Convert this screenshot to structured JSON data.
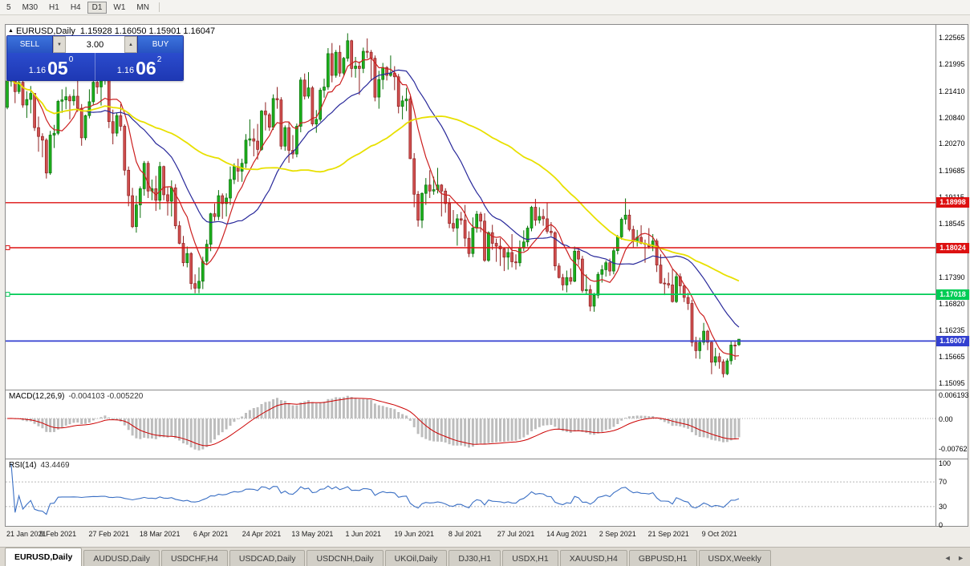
{
  "toolbar": {
    "timeframes": [
      {
        "label": "5",
        "active": false
      },
      {
        "label": "M30",
        "active": false
      },
      {
        "label": "H1",
        "active": false
      },
      {
        "label": "H4",
        "active": false
      },
      {
        "label": "D1",
        "active": true
      },
      {
        "label": "W1",
        "active": false
      },
      {
        "label": "MN",
        "active": false
      }
    ]
  },
  "chart": {
    "title_symbol": "EURUSD,Daily",
    "title_ohlc": "1.15928 1.16050 1.15901 1.16047",
    "marker": "▲"
  },
  "trade": {
    "sell_label": "SELL",
    "buy_label": "BUY",
    "volume": "3.00",
    "bid": "1.16050",
    "ask": "1.16062",
    "sell_price_main": "1.16",
    "sell_price_pips": "05",
    "sell_price_point": "0",
    "buy_price_main": "1.16",
    "buy_price_pips": "06",
    "buy_price_point": "2"
  },
  "indicators": {
    "macd": {
      "name": "MACD(12,26,9)",
      "values_text": "-0.004103 -0.005220",
      "fast": 12,
      "slow": 26,
      "signal": 9,
      "axis": [
        "0.006193",
        "0.00",
        "-0.00762"
      ]
    },
    "rsi": {
      "name": "RSI(14)",
      "value": "43.4469",
      "period": 14,
      "levels": [
        70,
        30
      ],
      "axis": [
        "100",
        "70",
        "30",
        "0"
      ]
    }
  },
  "tabs": {
    "prev_icon": "◄",
    "next_icon": "►",
    "items": [
      {
        "label": "EURUSD,Daily",
        "active": true
      },
      {
        "label": "AUDUSD,Daily",
        "active": false
      },
      {
        "label": "USDCHF,H4",
        "active": false
      },
      {
        "label": "USDCAD,Daily",
        "active": false
      },
      {
        "label": "USDCNH,Daily",
        "active": false
      },
      {
        "label": "UKOil,Daily",
        "active": false
      },
      {
        "label": "DJ30,H1",
        "active": false
      },
      {
        "label": "USDX,H1",
        "active": false
      },
      {
        "label": "XAUUSD,H4",
        "active": false
      },
      {
        "label": "GBPUSD,H1",
        "active": false
      },
      {
        "label": "USDX,Weekly",
        "active": false
      }
    ]
  },
  "chart_data": {
    "type": "candlestick",
    "symbol": "EURUSD",
    "timeframe": "Daily",
    "current": {
      "open": 1.15928,
      "high": 1.1605,
      "low": 1.15901,
      "close": 1.16047
    },
    "y_axis_labels": [
      "1.22565",
      "1.21995",
      "1.21410",
      "1.20840",
      "1.20270",
      "1.19685",
      "1.19115",
      "1.18545",
      "1.17960",
      "1.17390",
      "1.16820",
      "1.16235",
      "1.15665",
      "1.15095"
    ],
    "x_labels": [
      "21 Jan 2021",
      "9 Feb 2021",
      "27 Feb 2021",
      "18 Mar 2021",
      "6 Apr 2021",
      "24 Apr 2021",
      "13 May 2021",
      "1 Jun 2021",
      "19 Jun 2021",
      "8 Jul 2021",
      "27 Jul 2021",
      "14 Aug 2021",
      "2 Sep 2021",
      "21 Sep 2021",
      "9 Oct 2021"
    ],
    "label_step": 13,
    "colors": {
      "up": "#1cb11c",
      "up_border": "#0b6e0b",
      "down": "#d15050",
      "down_border": "#8f2020"
    },
    "moving_averages": [
      {
        "period": 8,
        "color": "#cc1f1f",
        "width": 1.2
      },
      {
        "period": 21,
        "color": "#28289a",
        "width": 1.2
      },
      {
        "period": 55,
        "color": "#e8e000",
        "width": 1.8
      }
    ],
    "hlines": [
      {
        "price": 1.18998,
        "color": "#dd1111",
        "width": 1.4,
        "tag": "1.18998",
        "marker": false
      },
      {
        "price": 1.18024,
        "color": "#dd1111",
        "width": 1.4,
        "tag": "1.18024",
        "marker": true
      },
      {
        "price": 1.17018,
        "color": "#00cc55",
        "width": 1.8,
        "tag": "1.17018",
        "marker": true
      },
      {
        "price": 1.16007,
        "color": "#3340d0",
        "width": 1.8,
        "tag": "1.16007",
        "marker": false
      }
    ],
    "candles": [
      [
        1.2106,
        1.2173,
        1.2102,
        1.2163
      ],
      [
        1.2163,
        1.2189,
        1.2151,
        1.2171
      ],
      [
        1.2171,
        1.2184,
        1.2115,
        1.214
      ],
      [
        1.214,
        1.217,
        1.2135,
        1.216
      ],
      [
        1.216,
        1.2165,
        1.2105,
        1.2111
      ],
      [
        1.2111,
        1.2141,
        1.2083,
        1.2123
      ],
      [
        1.2123,
        1.2152,
        1.2093,
        1.2136
      ],
      [
        1.2136,
        1.2137,
        1.2055,
        1.2062
      ],
      [
        1.2062,
        1.2086,
        1.201,
        1.2043
      ],
      [
        1.2043,
        1.205,
        1.1998,
        1.2035
      ],
      [
        1.2035,
        1.2039,
        1.1952,
        1.1964
      ],
      [
        1.1964,
        1.2055,
        1.196,
        1.2046
      ],
      [
        1.2046,
        1.2068,
        1.2018,
        1.205
      ],
      [
        1.205,
        1.2122,
        1.2046,
        1.2119
      ],
      [
        1.2119,
        1.2145,
        1.2094,
        1.2122
      ],
      [
        1.2122,
        1.215,
        1.2102,
        1.2129
      ],
      [
        1.2129,
        1.2134,
        1.208,
        1.212
      ],
      [
        1.212,
        1.2145,
        1.211,
        1.213
      ],
      [
        1.213,
        1.217,
        1.2096,
        1.2104
      ],
      [
        1.2104,
        1.2113,
        1.2023,
        1.204
      ],
      [
        1.204,
        1.209,
        1.2035,
        1.2088
      ],
      [
        1.2088,
        1.2145,
        1.2082,
        1.2118
      ],
      [
        1.2118,
        1.218,
        1.211,
        1.216
      ],
      [
        1.216,
        1.218,
        1.2135,
        1.215
      ],
      [
        1.215,
        1.2175,
        1.211,
        1.217
      ],
      [
        1.217,
        1.2243,
        1.2155,
        1.2175
      ],
      [
        1.2175,
        1.2183,
        1.2061,
        1.2075
      ],
      [
        1.2075,
        1.2101,
        1.2026,
        1.205
      ],
      [
        1.205,
        1.2094,
        1.2043,
        1.2088
      ],
      [
        1.2088,
        1.2113,
        1.2055,
        1.2065
      ],
      [
        1.2065,
        1.2069,
        1.1959,
        1.197
      ],
      [
        1.197,
        1.1978,
        1.1892,
        1.1915
      ],
      [
        1.1915,
        1.1932,
        1.1845,
        1.1848
      ],
      [
        1.1848,
        1.1915,
        1.1835,
        1.1895
      ],
      [
        1.1895,
        1.1935,
        1.1867,
        1.193
      ],
      [
        1.193,
        1.199,
        1.1915,
        1.1985
      ],
      [
        1.1985,
        1.199,
        1.191,
        1.1925
      ],
      [
        1.1925,
        1.195,
        1.1905,
        1.193
      ],
      [
        1.193,
        1.1958,
        1.1882,
        1.1905
      ],
      [
        1.1905,
        1.1988,
        1.1885,
        1.1978
      ],
      [
        1.1978,
        1.198,
        1.1905,
        1.1917
      ],
      [
        1.1917,
        1.1935,
        1.1872,
        1.1903
      ],
      [
        1.1903,
        1.1948,
        1.187,
        1.1932
      ],
      [
        1.1932,
        1.194,
        1.1843,
        1.185
      ],
      [
        1.185,
        1.186,
        1.181,
        1.1812
      ],
      [
        1.1812,
        1.1828,
        1.1762,
        1.177
      ],
      [
        1.177,
        1.1805,
        1.176,
        1.179
      ],
      [
        1.179,
        1.1793,
        1.1712,
        1.1725
      ],
      [
        1.1725,
        1.1745,
        1.1704,
        1.1715
      ],
      [
        1.1715,
        1.176,
        1.1704,
        1.173
      ],
      [
        1.173,
        1.1783,
        1.1713,
        1.1773
      ],
      [
        1.1773,
        1.182,
        1.1765,
        1.181
      ],
      [
        1.181,
        1.1878,
        1.1795,
        1.1876
      ],
      [
        1.1876,
        1.1898,
        1.186,
        1.187
      ],
      [
        1.187,
        1.1927,
        1.1862,
        1.1915
      ],
      [
        1.1915,
        1.192,
        1.1865,
        1.1898
      ],
      [
        1.1898,
        1.192,
        1.187,
        1.191
      ],
      [
        1.191,
        1.1978,
        1.1895,
        1.195
      ],
      [
        1.195,
        1.1985,
        1.194,
        1.1978
      ],
      [
        1.1978,
        1.1995,
        1.1945,
        1.1968
      ],
      [
        1.1968,
        1.1995,
        1.1945,
        1.1985
      ],
      [
        1.1985,
        1.2048,
        1.1975,
        1.2035
      ],
      [
        1.2035,
        1.208,
        1.2022,
        1.2038
      ],
      [
        1.2038,
        1.206,
        1.2,
        1.2033
      ],
      [
        1.2033,
        1.207,
        1.1993,
        1.2015
      ],
      [
        1.2015,
        1.21,
        1.2012,
        1.2098
      ],
      [
        1.2098,
        1.2117,
        1.2056,
        1.209
      ],
      [
        1.209,
        1.2094,
        1.2055,
        1.2063
      ],
      [
        1.2063,
        1.2134,
        1.2057,
        1.2125
      ],
      [
        1.2125,
        1.215,
        1.2103,
        1.2122
      ],
      [
        1.2122,
        1.2128,
        1.2015,
        1.2022
      ],
      [
        1.2022,
        1.2067,
        1.2012,
        1.2062
      ],
      [
        1.2062,
        1.2075,
        1.1986,
        1.2013
      ],
      [
        1.2013,
        1.2046,
        1.1995,
        1.2005
      ],
      [
        1.2005,
        1.2071,
        1.1998,
        1.2065
      ],
      [
        1.2065,
        1.2171,
        1.2052,
        1.2165
      ],
      [
        1.2165,
        1.2179,
        1.2123,
        1.213
      ],
      [
        1.213,
        1.2182,
        1.2125,
        1.2148
      ],
      [
        1.2148,
        1.2152,
        1.2065,
        1.207
      ],
      [
        1.207,
        1.21,
        1.2051,
        1.208
      ],
      [
        1.208,
        1.2148,
        1.2075,
        1.2143
      ],
      [
        1.2143,
        1.2168,
        1.2127,
        1.215
      ],
      [
        1.215,
        1.2234,
        1.2144,
        1.2222
      ],
      [
        1.2222,
        1.2245,
        1.216,
        1.2175
      ],
      [
        1.2175,
        1.223,
        1.217,
        1.2225
      ],
      [
        1.2225,
        1.224,
        1.2172,
        1.218
      ],
      [
        1.218,
        1.2215,
        1.2175,
        1.2212
      ],
      [
        1.2212,
        1.2266,
        1.2205,
        1.225
      ],
      [
        1.225,
        1.2252,
        1.2171,
        1.219
      ],
      [
        1.219,
        1.2215,
        1.217,
        1.2195
      ],
      [
        1.2195,
        1.2205,
        1.2133,
        1.219
      ],
      [
        1.219,
        1.2235,
        1.218,
        1.2227
      ],
      [
        1.2227,
        1.2255,
        1.2212,
        1.2225
      ],
      [
        1.2225,
        1.223,
        1.2163,
        1.2212
      ],
      [
        1.2212,
        1.2218,
        1.2119,
        1.2128
      ],
      [
        1.2128,
        1.2185,
        1.2103,
        1.2166
      ],
      [
        1.2166,
        1.2202,
        1.2145,
        1.2192
      ],
      [
        1.2192,
        1.2195,
        1.2164,
        1.2175
      ],
      [
        1.2175,
        1.2218,
        1.2172,
        1.218
      ],
      [
        1.218,
        1.2195,
        1.2143,
        1.2172
      ],
      [
        1.2172,
        1.2178,
        1.2093,
        1.2108
      ],
      [
        1.2108,
        1.2131,
        1.208,
        1.212
      ],
      [
        1.212,
        1.2148,
        1.2098,
        1.2124
      ],
      [
        1.2124,
        1.213,
        1.1994,
        1.1995
      ],
      [
        1.1995,
        1.2007,
        1.189,
        1.1918
      ],
      [
        1.1918,
        1.1925,
        1.1848,
        1.1862
      ],
      [
        1.1862,
        1.1922,
        1.1845,
        1.192
      ],
      [
        1.192,
        1.1953,
        1.1895,
        1.1938
      ],
      [
        1.1938,
        1.197,
        1.191,
        1.1925
      ],
      [
        1.1925,
        1.1956,
        1.1917,
        1.1928
      ],
      [
        1.1928,
        1.1975,
        1.192,
        1.1938
      ],
      [
        1.1938,
        1.194,
        1.187,
        1.1925
      ],
      [
        1.1925,
        1.1931,
        1.1878,
        1.1898
      ],
      [
        1.1898,
        1.191,
        1.1845,
        1.1855
      ],
      [
        1.1855,
        1.1884,
        1.1837,
        1.1845
      ],
      [
        1.1845,
        1.1875,
        1.1807,
        1.1865
      ],
      [
        1.1865,
        1.188,
        1.1852,
        1.1862
      ],
      [
        1.1862,
        1.1895,
        1.1805,
        1.1823
      ],
      [
        1.1823,
        1.1838,
        1.1782,
        1.179
      ],
      [
        1.179,
        1.1868,
        1.1782,
        1.1845
      ],
      [
        1.1845,
        1.1882,
        1.1835,
        1.1875
      ],
      [
        1.1875,
        1.188,
        1.1836,
        1.186
      ],
      [
        1.186,
        1.1877,
        1.1772,
        1.1775
      ],
      [
        1.1775,
        1.1838,
        1.1772,
        1.1835
      ],
      [
        1.1835,
        1.1852,
        1.1798,
        1.1812
      ],
      [
        1.1812,
        1.1822,
        1.1772,
        1.1806
      ],
      [
        1.1806,
        1.1823,
        1.1763,
        1.18
      ],
      [
        1.18,
        1.1803,
        1.1752,
        1.1782
      ],
      [
        1.1782,
        1.1802,
        1.1755,
        1.1792
      ],
      [
        1.1792,
        1.1832,
        1.176,
        1.1772
      ],
      [
        1.1772,
        1.1788,
        1.1755,
        1.177
      ],
      [
        1.177,
        1.1818,
        1.1762,
        1.1802
      ],
      [
        1.1802,
        1.184,
        1.1795,
        1.1815
      ],
      [
        1.1815,
        1.185,
        1.1805,
        1.1845
      ],
      [
        1.1845,
        1.1893,
        1.1838,
        1.189
      ],
      [
        1.189,
        1.1908,
        1.185,
        1.1862
      ],
      [
        1.1862,
        1.189,
        1.1855,
        1.187
      ],
      [
        1.187,
        1.1886,
        1.185,
        1.1865
      ],
      [
        1.1865,
        1.1899,
        1.1833,
        1.1838
      ],
      [
        1.1838,
        1.1858,
        1.1828,
        1.1835
      ],
      [
        1.1835,
        1.1838,
        1.1753,
        1.1763
      ],
      [
        1.1763,
        1.1769,
        1.1736,
        1.1738
      ],
      [
        1.1738,
        1.1746,
        1.171,
        1.1722
      ],
      [
        1.1722,
        1.1753,
        1.1706,
        1.1738
      ],
      [
        1.1738,
        1.1758,
        1.1723,
        1.173
      ],
      [
        1.173,
        1.1805,
        1.1728,
        1.1795
      ],
      [
        1.1795,
        1.1802,
        1.1765,
        1.1778
      ],
      [
        1.1778,
        1.1785,
        1.1705,
        1.171
      ],
      [
        1.171,
        1.1745,
        1.1702,
        1.1712
      ],
      [
        1.1712,
        1.1722,
        1.1665,
        1.1676
      ],
      [
        1.1676,
        1.1705,
        1.1664,
        1.17
      ],
      [
        1.17,
        1.175,
        1.1693,
        1.1745
      ],
      [
        1.1745,
        1.1765,
        1.1727,
        1.1755
      ],
      [
        1.1755,
        1.1775,
        1.174,
        1.177
      ],
      [
        1.177,
        1.1779,
        1.1742,
        1.1752
      ],
      [
        1.1752,
        1.1802,
        1.1745,
        1.1796
      ],
      [
        1.1796,
        1.183,
        1.1788,
        1.1826
      ],
      [
        1.1826,
        1.1868,
        1.182,
        1.1864
      ],
      [
        1.1864,
        1.1909,
        1.1853,
        1.1873
      ],
      [
        1.1873,
        1.1885,
        1.1838,
        1.1842
      ],
      [
        1.1842,
        1.185,
        1.1802,
        1.1816
      ],
      [
        1.1816,
        1.1841,
        1.1805,
        1.1825
      ],
      [
        1.1825,
        1.1851,
        1.181,
        1.1812
      ],
      [
        1.1812,
        1.182,
        1.177,
        1.181
      ],
      [
        1.181,
        1.1845,
        1.18,
        1.1805
      ],
      [
        1.1805,
        1.1832,
        1.1795,
        1.1817
      ],
      [
        1.1817,
        1.1822,
        1.175,
        1.1765
      ],
      [
        1.1765,
        1.1788,
        1.1725,
        1.1726
      ],
      [
        1.1726,
        1.1737,
        1.17,
        1.1725
      ],
      [
        1.1725,
        1.1749,
        1.1715,
        1.1722
      ],
      [
        1.1722,
        1.1756,
        1.1684,
        1.1686
      ],
      [
        1.1686,
        1.175,
        1.1683,
        1.174
      ],
      [
        1.174,
        1.1747,
        1.1701,
        1.172
      ],
      [
        1.172,
        1.1722,
        1.1685,
        1.1695
      ],
      [
        1.1695,
        1.1705,
        1.1668,
        1.1682
      ],
      [
        1.1682,
        1.169,
        1.1589,
        1.1598
      ],
      [
        1.1598,
        1.161,
        1.1563,
        1.158
      ],
      [
        1.158,
        1.1608,
        1.1562,
        1.1598
      ],
      [
        1.1598,
        1.164,
        1.1592,
        1.1622
      ],
      [
        1.1622,
        1.1625,
        1.1581,
        1.1598
      ],
      [
        1.1598,
        1.1602,
        1.1529,
        1.1555
      ],
      [
        1.1555,
        1.1586,
        1.1547,
        1.1567
      ],
      [
        1.1567,
        1.1575,
        1.1541,
        1.1556
      ],
      [
        1.1556,
        1.1561,
        1.1522,
        1.153
      ],
      [
        1.153,
        1.1563,
        1.1527,
        1.1558
      ],
      [
        1.1558,
        1.16,
        1.155,
        1.1592
      ],
      [
        1.1592,
        1.16,
        1.156,
        1.159
      ],
      [
        1.15928,
        1.1605,
        1.15901,
        1.16047
      ]
    ]
  }
}
